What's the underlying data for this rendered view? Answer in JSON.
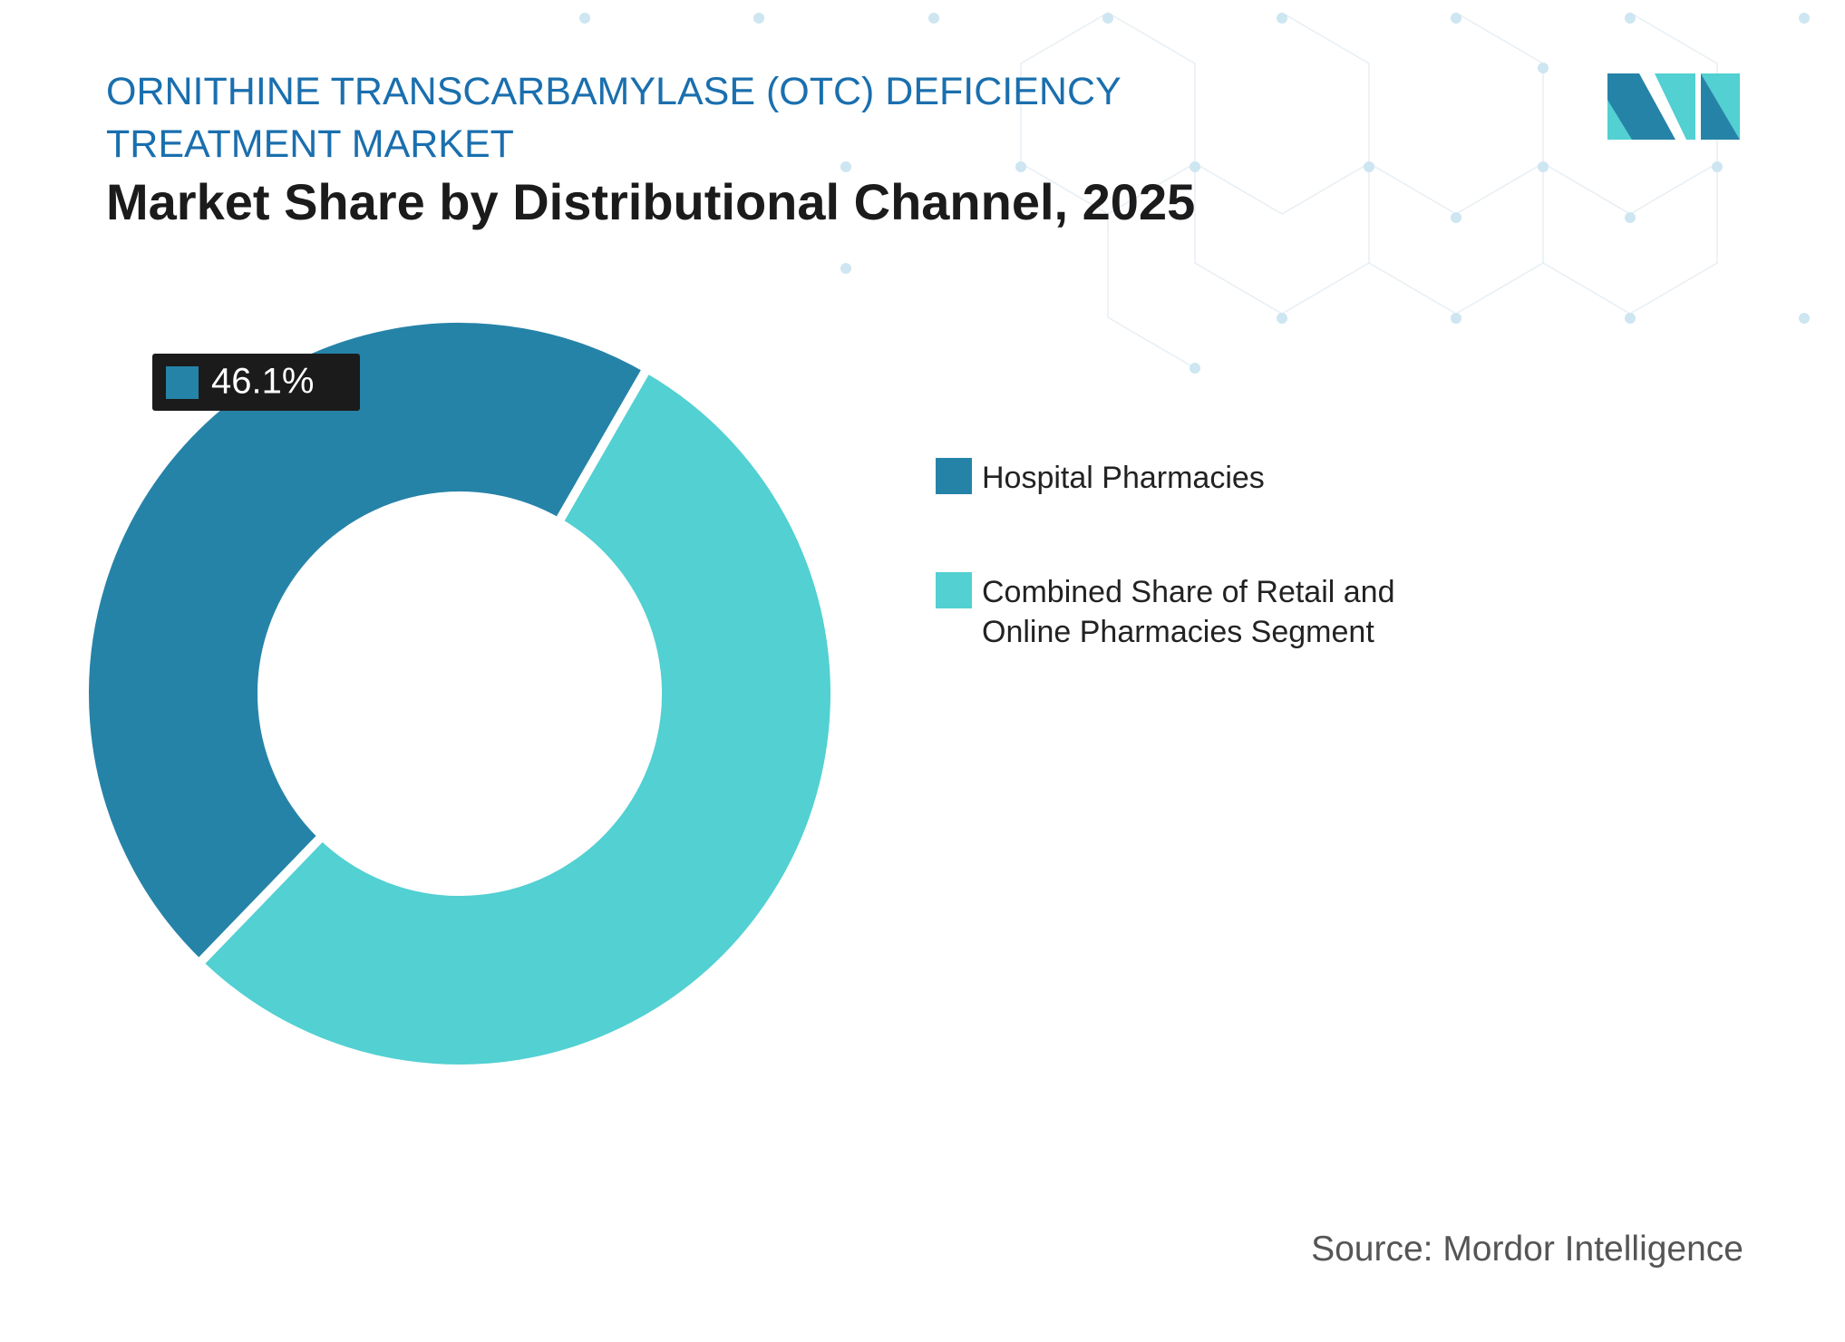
{
  "chart_data": {
    "type": "donut",
    "market": "ORNITHINE TRANSCARBAMYLASE (OTC) DEFICIENCY TREATMENT MARKET",
    "title": "Market Share by Distributional Channel, 2025",
    "categories": [
      "Hospital Pharmacies",
      "Combined Share of Retail and Online Pharmacies Segment"
    ],
    "values": [
      46.1,
      53.9
    ],
    "value_labels": [
      "46.1%",
      null
    ],
    "colors": [
      "#2683a8",
      "#52d0d2"
    ],
    "source": "Source: Mordor Intelligence"
  }
}
